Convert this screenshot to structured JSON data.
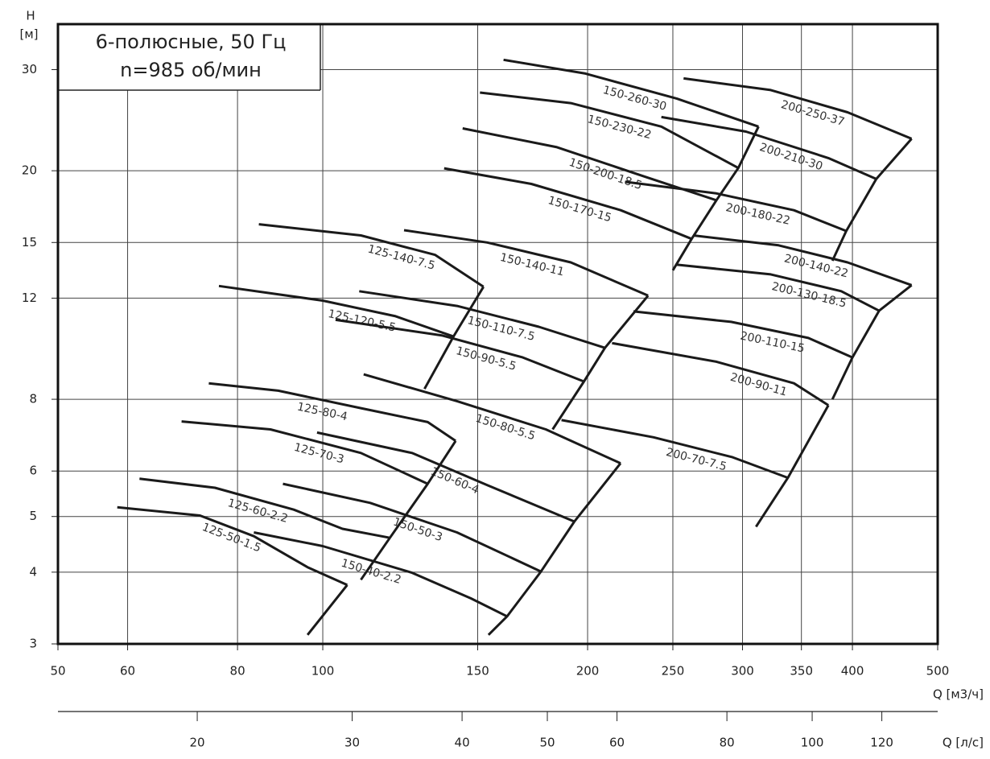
{
  "chart_data": {
    "type": "line",
    "title": "6-полюсные, 50 Гц",
    "subtitle": "n=985 об/мин",
    "y_label": "H",
    "y_unit": "[м]",
    "x_label": "Q [м3/ч]",
    "x2_label": "Q [л/с]",
    "log_x": true,
    "log_y": true,
    "grid": true,
    "color": "#1a1a1a",
    "xlim": [
      50,
      500
    ],
    "ylim": [
      3,
      36
    ],
    "xticks": [
      50,
      60,
      80,
      100,
      150,
      200,
      250,
      300,
      350,
      400,
      500
    ],
    "yticks": [
      3,
      4,
      5,
      6,
      8,
      12,
      15,
      20,
      30
    ],
    "x2lim": [
      13.89,
      138.89
    ],
    "x2ticks": [
      20,
      30,
      40,
      50,
      60,
      80,
      100,
      120
    ],
    "series": [
      {
        "name": "125-50-1.5",
        "x": [
          58.4,
          72.5,
          83.5,
          96.1,
          106.6
        ],
        "values": [
          5.19,
          5.02,
          4.62,
          4.08,
          3.8
        ]
      },
      {
        "name": "125-60-2.2",
        "x": [
          61.9,
          75.4,
          92.7,
          105.3,
          119.2
        ],
        "values": [
          5.82,
          5.61,
          5.14,
          4.76,
          4.59
        ]
      },
      {
        "name": "125-70-3",
        "x": [
          69.1,
          87.2,
          110.5,
          131.6
        ],
        "values": [
          7.32,
          7.09,
          6.45,
          5.7
        ]
      },
      {
        "name": "125-80-4",
        "x": [
          74.2,
          89.0,
          110.5,
          131.6,
          141.6
        ],
        "values": [
          8.53,
          8.28,
          7.72,
          7.3,
          6.77
        ]
      },
      {
        "name": "125-120-5.5",
        "x": [
          76.2,
          100,
          121,
          140.8
        ],
        "values": [
          12.6,
          11.88,
          11.16,
          10.29
        ]
      },
      {
        "name": "125-140-7.5",
        "x": [
          84.6,
          110.5,
          134.2,
          152.3
        ],
        "values": [
          16.14,
          15.43,
          14.27,
          12.56
        ]
      },
      {
        "name": "150-40-2.2",
        "x": [
          83.5,
          100,
          126.3,
          147.4,
          162
        ],
        "values": [
          4.69,
          4.44,
          3.99,
          3.6,
          3.35
        ]
      },
      {
        "name": "150-50-3",
        "x": [
          90.1,
          113.2,
          142.1,
          177
        ],
        "values": [
          5.7,
          5.28,
          4.69,
          4.01
        ]
      },
      {
        "name": "150-60-4",
        "x": [
          98.5,
          126.3,
          153.8,
          193.2
        ],
        "values": [
          7.0,
          6.45,
          5.67,
          4.9
        ]
      },
      {
        "name": "150-80-5.5",
        "x": [
          111.3,
          142.1,
          179.3,
          218
        ],
        "values": [
          8.84,
          7.94,
          7.09,
          6.19
        ]
      },
      {
        "name": "150-90-5.5",
        "x": [
          103.4,
          136.8,
          168.8,
          198.1
        ],
        "values": [
          11.0,
          10.33,
          9.46,
          8.59
        ]
      },
      {
        "name": "150-110-7.5",
        "x": [
          110,
          142.1,
          176,
          209.3
        ],
        "values": [
          12.34,
          11.63,
          10.7,
          9.83
        ]
      },
      {
        "name": "150-140-11",
        "x": [
          123.7,
          153.8,
          191.4,
          234.3
        ],
        "values": [
          15.76,
          15,
          13.85,
          12.12
        ]
      },
      {
        "name": "150-170-15",
        "x": [
          137.4,
          172.6,
          218.1,
          262.6
        ],
        "values": [
          20.2,
          18.97,
          17.07,
          15.22
        ]
      },
      {
        "name": "150-200-18.5",
        "x": [
          144.2,
          184.6,
          232.8,
          280.2
        ],
        "values": [
          23.7,
          21.98,
          19.51,
          17.77
        ]
      },
      {
        "name": "150-230-22",
        "x": [
          150.9,
          191.4,
          242.6,
          296.7
        ],
        "values": [
          27.36,
          26.23,
          23.87,
          20.22
        ]
      },
      {
        "name": "150-260-30",
        "x": [
          160.5,
          198.9,
          252.7,
          312.8
        ],
        "values": [
          31.2,
          29.53,
          26.7,
          23.87
        ]
      },
      {
        "name": "200-70-7.5",
        "x": [
          186.8,
          237.7,
          292.3,
          337.8
        ],
        "values": [
          7.36,
          6.87,
          6.34,
          5.84
        ]
      },
      {
        "name": "200-90-11",
        "x": [
          213.2,
          280.2,
          343.2,
          375.6
        ],
        "values": [
          10.02,
          9.3,
          8.53,
          7.81
        ]
      },
      {
        "name": "200-110-15",
        "x": [
          225.5,
          291.2,
          356.4,
          400
        ],
        "values": [
          11.38,
          10.91,
          10.23,
          9.46
        ]
      },
      {
        "name": "200-130-18.5",
        "x": [
          252.7,
          323,
          388.5,
          428.9
        ],
        "values": [
          13.72,
          13.2,
          12.34,
          11.41
        ]
      },
      {
        "name": "200-140-22",
        "x": [
          263.7,
          329.7,
          394.9,
          467
        ],
        "values": [
          15.43,
          14.83,
          13.85,
          12.64
        ]
      },
      {
        "name": "200-180-22",
        "x": [
          220.6,
          280.2,
          343.2,
          393.6
        ],
        "values": [
          19.13,
          18.26,
          17.07,
          15.71
        ]
      },
      {
        "name": "200-210-30",
        "x": [
          242.6,
          302.7,
          375.6,
          425.8
        ],
        "values": [
          24.81,
          23.4,
          21.04,
          19.35
        ]
      },
      {
        "name": "200-250-37",
        "x": [
          257.1,
          323,
          394.9,
          467
        ],
        "values": [
          28.96,
          27.64,
          25.28,
          22.74
        ]
      }
    ],
    "limit_lines": [
      {
        "x": [
          96.1,
          106.6
        ],
        "values": [
          3.11,
          3.8
        ]
      },
      {
        "x": [
          110.5,
          119.2,
          131.6,
          141.6
        ],
        "values": [
          3.88,
          4.59,
          5.7,
          6.77
        ]
      },
      {
        "x": [
          130.5,
          140.8,
          152.3
        ],
        "values": [
          8.34,
          10.29,
          12.56
        ]
      },
      {
        "x": [
          154.3,
          162,
          177,
          193.2,
          218
        ],
        "values": [
          3.11,
          3.35,
          4.01,
          4.9,
          6.19
        ]
      },
      {
        "x": [
          182.5,
          198.1,
          209.3,
          234.3
        ],
        "values": [
          7.09,
          8.59,
          9.83,
          12.12
        ]
      },
      {
        "x": [
          250,
          262.6,
          280.2,
          296.7,
          312.8
        ],
        "values": [
          13.42,
          15.22,
          17.77,
          20.22,
          23.87
        ]
      },
      {
        "x": [
          310.8,
          337.8,
          375.6
        ],
        "values": [
          4.8,
          5.84,
          7.81
        ]
      },
      {
        "x": [
          379.6,
          400,
          428.9,
          467
        ],
        "values": [
          8,
          9.46,
          11.41,
          12.64
        ]
      },
      {
        "x": [
          379.6,
          393.6,
          425.8,
          467
        ],
        "values": [
          13.94,
          15.71,
          19.35,
          22.74
        ]
      }
    ]
  }
}
